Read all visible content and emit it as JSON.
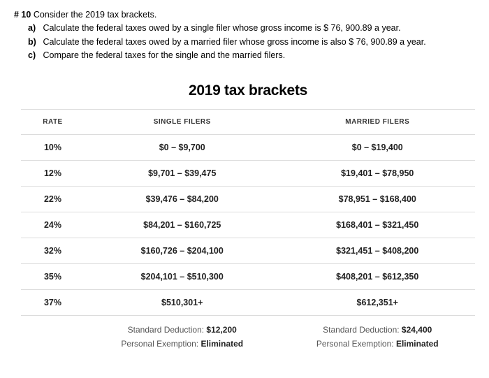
{
  "question": {
    "number": "# 10",
    "prompt": "Consider the 2019 tax brackets.",
    "parts": {
      "a": {
        "letter": "a)",
        "text": "Calculate the federal taxes owed by a single filer whose gross income is $ 76, 900.89 a year."
      },
      "b": {
        "letter": "b)",
        "text": "Calculate the federal taxes owed by a married filer whose gross income is also $ 76, 900.89 a year."
      },
      "c": {
        "letter": "c)",
        "text": "Compare the federal taxes for the single and the married filers."
      }
    }
  },
  "chart": {
    "title": "2019 tax brackets",
    "headers": {
      "rate": "RATE",
      "single": "SINGLE FILERS",
      "married": "MARRIED FILERS"
    },
    "rows": [
      {
        "rate": "10%",
        "single": "$0 – $9,700",
        "married": "$0 – $19,400"
      },
      {
        "rate": "12%",
        "single": "$9,701 – $39,475",
        "married": "$19,401 – $78,950"
      },
      {
        "rate": "22%",
        "single": "$39,476 – $84,200",
        "married": "$78,951 – $168,400"
      },
      {
        "rate": "24%",
        "single": "$84,201 – $160,725",
        "married": "$168,401 – $321,450"
      },
      {
        "rate": "32%",
        "single": "$160,726 – $204,100",
        "married": "$321,451 – $408,200"
      },
      {
        "rate": "35%",
        "single": "$204,101 – $510,300",
        "married": "$408,201 – $612,350"
      },
      {
        "rate": "37%",
        "single": "$510,301+",
        "married": "$612,351+"
      }
    ],
    "footer": {
      "single": {
        "sd_label": "Standard Deduction: ",
        "sd_value": "$12,200",
        "pe_label": "Personal Exemption: ",
        "pe_value": "Eliminated"
      },
      "married": {
        "sd_label": "Standard Deduction: ",
        "sd_value": "$24,400",
        "pe_label": "Personal Exemption: ",
        "pe_value": "Eliminated"
      }
    }
  }
}
